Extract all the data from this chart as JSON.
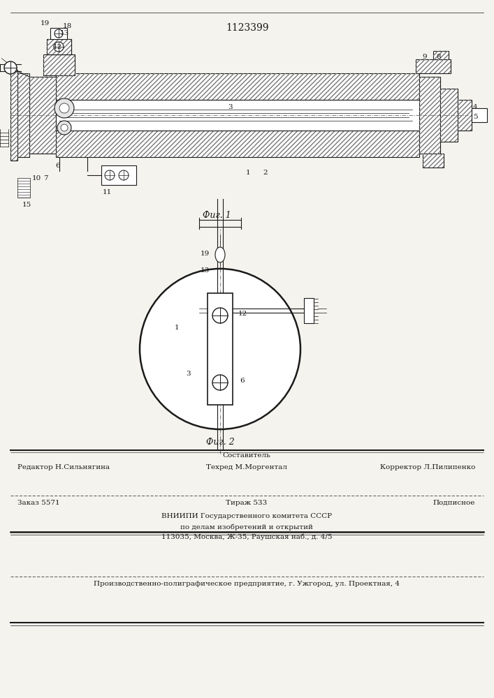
{
  "patent_number": "1123399",
  "fig1_label": "Фиг. 1",
  "fig2_label": "Фиг. 2",
  "footer_sestavitel": "Составитель",
  "footer_redaktor": "Редактор Н.Сильнягина",
  "footer_tehred": "Техред М.Моргентал",
  "footer_korrektor": "Корректор Л.Пилипенко",
  "footer_zakaz": "Заказ 5571",
  "footer_tirazh": "Тираж 533",
  "footer_podpisnoe": "Подписное",
  "footer_vniiipi1": "ВНИИПИ Государственного комитета СССР",
  "footer_vniiipi2": "по делам изобретений и открытий",
  "footer_address": "113035, Москва, Ж-35, Раушская наб., д. 4/5",
  "footer_plant": "Производственно-полиграфическое предприятие, г. Ужгород, ул. Проектная, 4",
  "bg_color": "#f5f3ee",
  "line_color": "#1a1a1a"
}
